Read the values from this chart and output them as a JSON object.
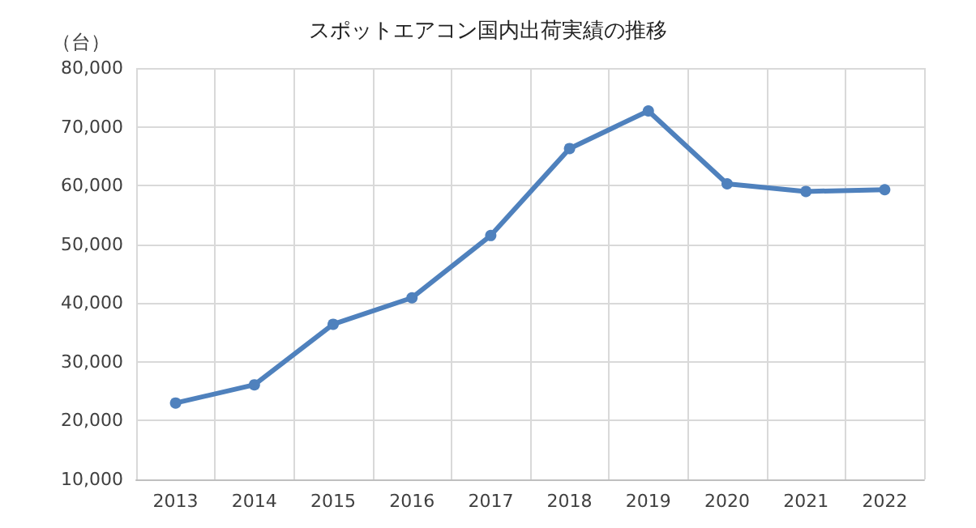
{
  "chart_data": {
    "type": "line",
    "title": "スポットエアコン国内出荷実績の推移",
    "ylabel": "（台）",
    "categories": [
      "2013",
      "2014",
      "2015",
      "2016",
      "2017",
      "2018",
      "2019",
      "2020",
      "2021",
      "2022"
    ],
    "series": [
      {
        "color": "#4f81bd",
        "values": [
          23000,
          26100,
          36400,
          40900,
          51500,
          66300,
          72700,
          60300,
          59000,
          59300
        ]
      }
    ],
    "ylim": [
      10000,
      80000
    ],
    "yticks": [
      {
        "value": 10000,
        "label": "10,000"
      },
      {
        "value": 20000,
        "label": "20,000"
      },
      {
        "value": 30000,
        "label": "30,000"
      },
      {
        "value": 40000,
        "label": "40,000"
      },
      {
        "value": 50000,
        "label": "50,000"
      },
      {
        "value": 60000,
        "label": "60,000"
      },
      {
        "value": 70000,
        "label": "70,000"
      },
      {
        "value": 80000,
        "label": "80,000"
      }
    ],
    "grid": true,
    "marker": "circle",
    "line_style": "solid"
  }
}
